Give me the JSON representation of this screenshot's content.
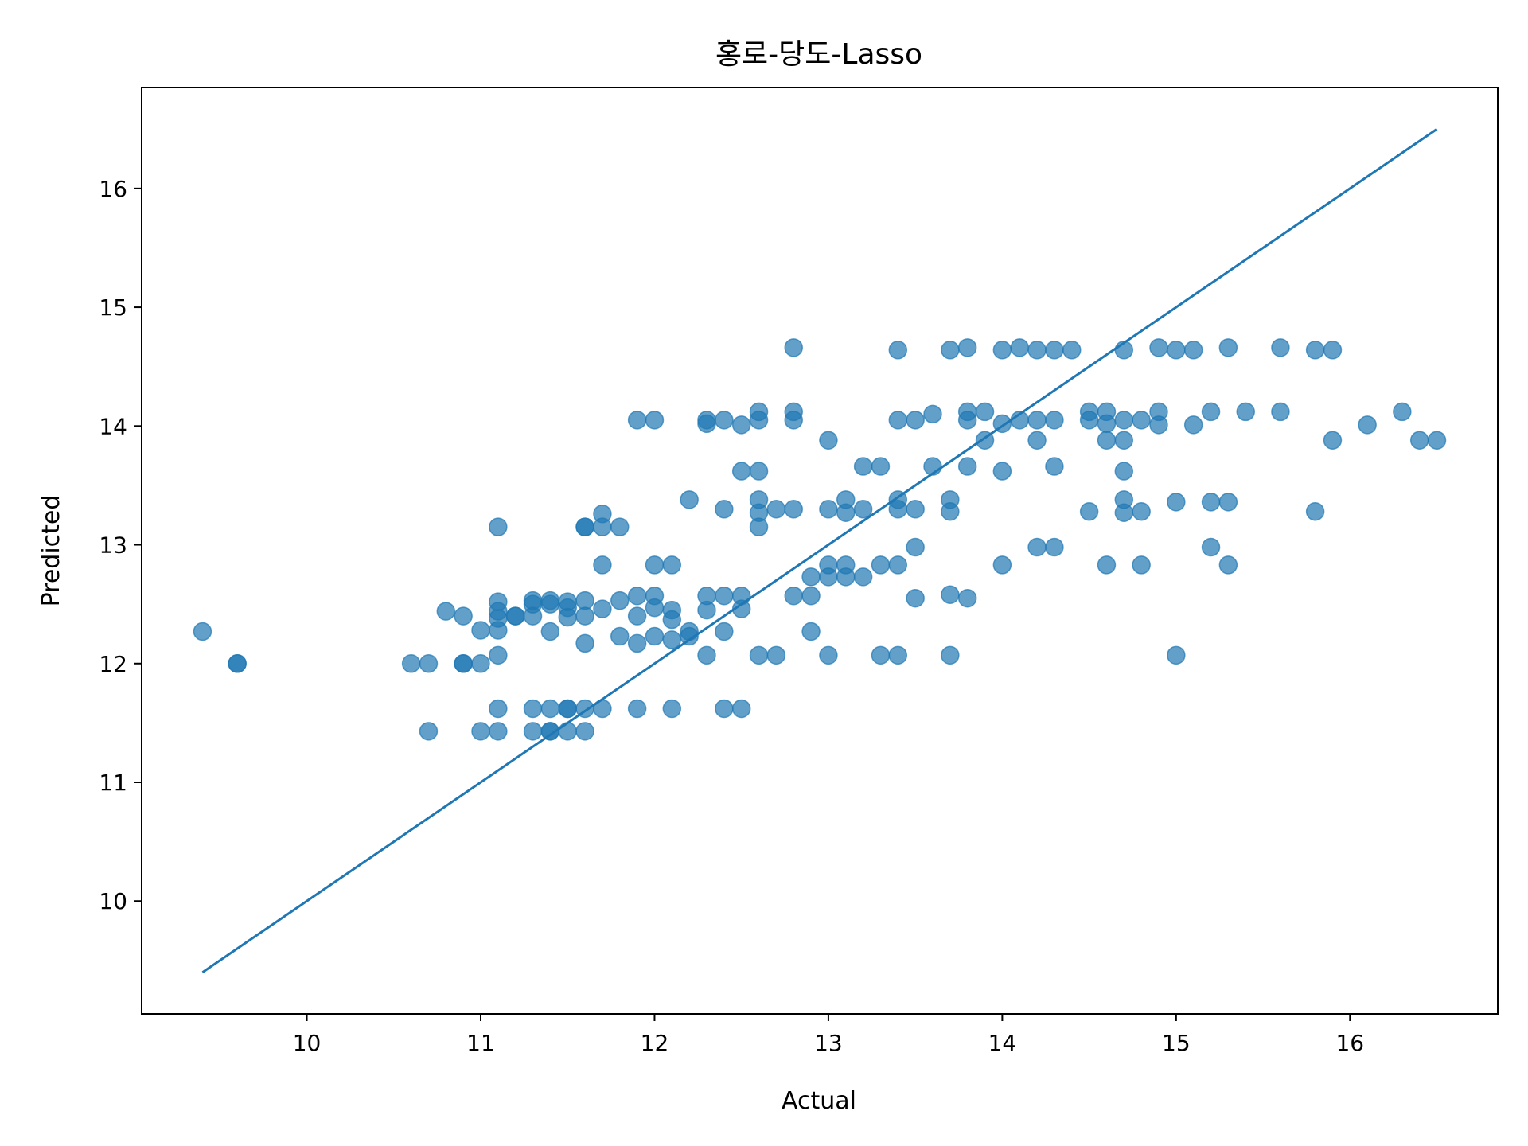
{
  "chart_data": {
    "type": "scatter",
    "title": "홍로-당도-Lasso",
    "xlabel": "Actual",
    "ylabel": "Predicted",
    "xlim": [
      9.05,
      16.85
    ],
    "ylim": [
      9.05,
      16.85
    ],
    "xticks": [
      10,
      11,
      12,
      13,
      14,
      15,
      16
    ],
    "yticks": [
      10,
      11,
      12,
      13,
      14,
      15,
      16
    ],
    "grid": false,
    "marker_color": "#1f77b4",
    "line_color": "#1f77b4",
    "reference_line": {
      "x": [
        9.4,
        16.5
      ],
      "y": [
        9.4,
        16.5
      ]
    },
    "series": [
      {
        "x": [
          9.4,
          9.6,
          9.6,
          10.6,
          10.7,
          10.7,
          10.8,
          10.9,
          10.9,
          10.9,
          11.0,
          11.0,
          11.0,
          11.1,
          11.1,
          11.1,
          11.1,
          11.1,
          11.1,
          11.1,
          11.1,
          11.2,
          11.2,
          11.3,
          11.3,
          11.3,
          11.3,
          11.3,
          11.4,
          11.4,
          11.4,
          11.4,
          11.4,
          11.4,
          11.5,
          11.5,
          11.5,
          11.5,
          11.5,
          11.5,
          11.6,
          11.6,
          11.6,
          11.6,
          11.6,
          11.6,
          11.6,
          11.7,
          11.7,
          11.7,
          11.7,
          11.7,
          11.8,
          11.8,
          11.8,
          11.9,
          11.9,
          11.9,
          11.9,
          11.9,
          12.0,
          12.0,
          12.0,
          12.0,
          12.0,
          12.1,
          12.1,
          12.1,
          12.1,
          12.1,
          12.2,
          12.2,
          12.2,
          12.3,
          12.3,
          12.3,
          12.3,
          12.3,
          12.4,
          12.4,
          12.4,
          12.4,
          12.4,
          12.5,
          12.5,
          12.5,
          12.5,
          12.5,
          12.6,
          12.6,
          12.6,
          12.6,
          12.6,
          12.6,
          12.6,
          12.7,
          12.7,
          12.8,
          12.8,
          12.8,
          12.8,
          12.8,
          12.9,
          12.9,
          12.9,
          13.0,
          13.0,
          13.0,
          13.0,
          13.0,
          13.1,
          13.1,
          13.1,
          13.1,
          13.2,
          13.2,
          13.2,
          13.3,
          13.3,
          13.3,
          13.4,
          13.4,
          13.4,
          13.4,
          13.4,
          13.4,
          13.5,
          13.5,
          13.5,
          13.5,
          13.6,
          13.6,
          13.7,
          13.7,
          13.7,
          13.7,
          13.7,
          13.8,
          13.8,
          13.8,
          13.8,
          13.8,
          13.9,
          13.9,
          14.0,
          14.0,
          14.0,
          14.0,
          14.1,
          14.1,
          14.2,
          14.2,
          14.2,
          14.2,
          14.3,
          14.3,
          14.3,
          14.3,
          14.4,
          14.5,
          14.5,
          14.5,
          14.6,
          14.6,
          14.6,
          14.6,
          14.7,
          14.7,
          14.7,
          14.7,
          14.7,
          14.7,
          14.8,
          14.8,
          14.8,
          14.9,
          14.9,
          14.9,
          15.0,
          15.0,
          15.0,
          15.1,
          15.1,
          15.2,
          15.2,
          15.2,
          15.3,
          15.3,
          15.3,
          15.4,
          15.6,
          15.6,
          15.8,
          15.8,
          15.9,
          15.9,
          16.1,
          16.3,
          16.4,
          16.5
        ],
        "y": [
          12.27,
          12.0,
          12.0,
          12.0,
          12.0,
          11.43,
          12.44,
          12.4,
          12.0,
          12.0,
          12.28,
          12.0,
          11.43,
          13.15,
          12.52,
          12.44,
          12.38,
          12.28,
          12.07,
          11.62,
          11.43,
          12.4,
          12.4,
          12.53,
          12.5,
          12.4,
          11.62,
          11.43,
          12.53,
          12.5,
          12.27,
          11.62,
          11.43,
          11.43,
          12.52,
          12.47,
          12.39,
          11.62,
          11.62,
          11.43,
          13.15,
          13.15,
          12.53,
          12.4,
          12.17,
          11.62,
          11.43,
          13.26,
          13.15,
          12.83,
          12.46,
          11.62,
          13.15,
          12.53,
          12.23,
          14.05,
          12.57,
          12.4,
          12.17,
          11.62,
          14.05,
          12.83,
          12.57,
          12.47,
          12.23,
          12.83,
          12.45,
          12.37,
          12.2,
          11.62,
          13.38,
          12.27,
          12.23,
          14.05,
          14.02,
          12.57,
          12.45,
          12.07,
          14.05,
          13.3,
          12.57,
          12.27,
          11.62,
          14.01,
          13.62,
          12.57,
          12.46,
          11.62,
          14.12,
          14.05,
          13.62,
          13.38,
          13.27,
          13.15,
          12.07,
          13.3,
          12.07,
          14.66,
          14.12,
          14.05,
          13.3,
          12.57,
          12.73,
          12.57,
          12.27,
          13.88,
          13.3,
          12.83,
          12.73,
          12.07,
          13.38,
          13.27,
          12.83,
          12.73,
          13.66,
          13.3,
          12.73,
          13.66,
          12.83,
          12.07,
          14.64,
          14.05,
          13.38,
          13.3,
          12.83,
          12.07,
          14.05,
          13.3,
          12.98,
          12.55,
          14.1,
          13.66,
          14.64,
          13.38,
          13.28,
          12.58,
          12.07,
          14.66,
          14.12,
          14.05,
          13.66,
          12.55,
          14.12,
          13.88,
          14.64,
          14.02,
          13.62,
          12.83,
          14.66,
          14.05,
          14.64,
          14.05,
          13.88,
          12.98,
          14.64,
          14.05,
          13.66,
          12.98,
          14.64,
          14.12,
          14.05,
          13.28,
          14.12,
          14.02,
          13.88,
          12.83,
          14.64,
          14.05,
          13.88,
          13.62,
          13.38,
          13.27,
          14.05,
          13.28,
          12.83,
          14.66,
          14.12,
          14.01,
          14.64,
          13.36,
          12.07,
          14.64,
          14.01,
          14.12,
          13.36,
          12.98,
          14.66,
          13.36,
          12.83,
          14.12,
          14.66,
          14.12,
          14.64,
          13.28,
          14.64,
          13.88,
          14.01,
          14.12,
          13.88,
          13.88
        ]
      }
    ]
  }
}
